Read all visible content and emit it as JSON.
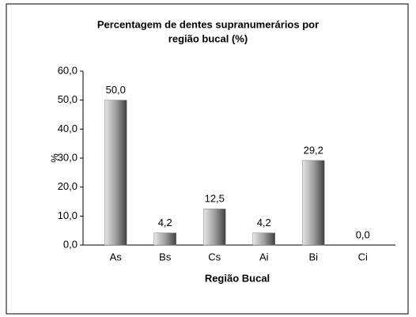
{
  "chart_data": {
    "type": "bar",
    "title": [
      "Percentagem de dentes supranumerários por",
      "região bucal (%)"
    ],
    "x_label": "Região Bucal",
    "y_label": "%",
    "categories": [
      "As",
      "Bs",
      "Cs",
      "Ai",
      "Bi",
      "Ci"
    ],
    "values": [
      50.0,
      4.2,
      12.5,
      4.2,
      29.2,
      0.0
    ],
    "value_labels": [
      "50,0",
      "4,2",
      "12,5",
      "4,2",
      "29,2",
      "0,0"
    ],
    "color": "#808080",
    "ylim": [
      0,
      60
    ],
    "yticks": [
      {
        "value": 0,
        "label": "0,0"
      },
      {
        "value": 10,
        "label": "10,0"
      },
      {
        "value": 20,
        "label": "20,0"
      },
      {
        "value": 30,
        "label": "30,0"
      },
      {
        "value": 40,
        "label": "40,0"
      },
      {
        "value": 50,
        "label": "50,0"
      },
      {
        "value": 60,
        "label": "60,0"
      }
    ],
    "grid": false
  }
}
